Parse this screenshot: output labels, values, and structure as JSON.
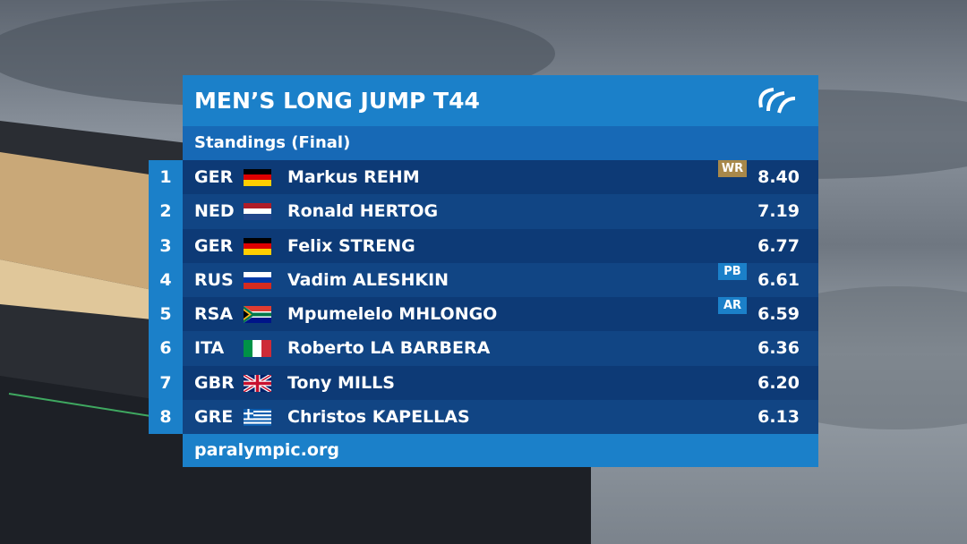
{
  "header": {
    "title": "MEN’S LONG JUMP T44",
    "subtitle": "Standings (Final)"
  },
  "table": {
    "rows": [
      {
        "rank": "1",
        "country": "GER",
        "name": "Markus REHM",
        "badge": "WR",
        "result": "8.40"
      },
      {
        "rank": "2",
        "country": "NED",
        "name": "Ronald HERTOG",
        "result": "7.19"
      },
      {
        "rank": "3",
        "country": "GER",
        "name": "Felix STRENG",
        "result": "6.77"
      },
      {
        "rank": "4",
        "country": "RUS",
        "name": "Vadim ALESHKIN",
        "badge": "PB",
        "result": "6.61"
      },
      {
        "rank": "5",
        "country": "RSA",
        "name": "Mpumelelo MHLONGO",
        "badge": "AR",
        "result": "6.59"
      },
      {
        "rank": "6",
        "country": "ITA",
        "name": "Roberto LA BARBERA",
        "result": "6.36"
      },
      {
        "rank": "7",
        "country": "GBR",
        "name": "Tony MILLS",
        "result": "6.20"
      },
      {
        "rank": "8",
        "country": "GRE",
        "name": "Christos KAPELLAS",
        "result": "6.13"
      }
    ]
  },
  "footer": {
    "url": "paralympic.org"
  }
}
